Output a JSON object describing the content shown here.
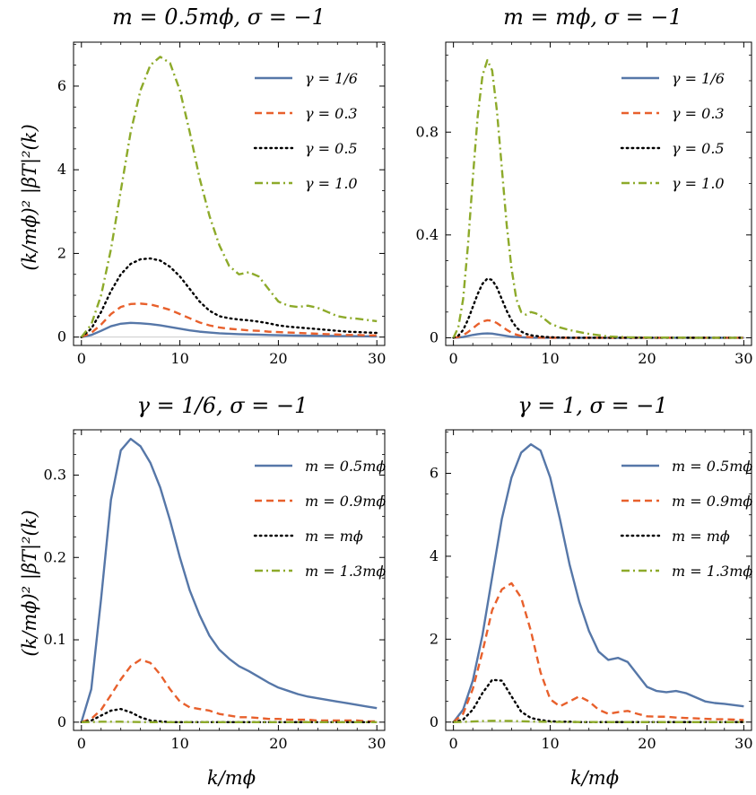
{
  "colors": {
    "blue": "#5677A8",
    "orange": "#E8602C",
    "black": "#000000",
    "green": "#8DAA2A"
  },
  "shared": {
    "ylabel": "(k/mϕ)² |βT|²(k)",
    "xlabel": "k/mϕ"
  },
  "chart_data": [
    {
      "type": "line",
      "title": "m = 0.5mϕ, σ = −1",
      "xlabel": "",
      "ylabel": "(k/mϕ)² |βT|²(k)",
      "xlim": [
        -0.8,
        30.8
      ],
      "ylim": [
        -0.2,
        7.05
      ],
      "xticks": [
        0,
        10,
        20,
        30
      ],
      "yticks": [
        0,
        2,
        4,
        6
      ],
      "legend_position": "top-right",
      "x": [
        0,
        1,
        2,
        3,
        4,
        5,
        6,
        7,
        8,
        9,
        10,
        11,
        12,
        13,
        14,
        15,
        16,
        17,
        18,
        19,
        20,
        21,
        22,
        23,
        24,
        25,
        26,
        27,
        28,
        29,
        30
      ],
      "series": [
        {
          "name": "γ = 1/6",
          "color": "blue",
          "style": "solid",
          "values": [
            0,
            0.05,
            0.15,
            0.26,
            0.32,
            0.34,
            0.33,
            0.31,
            0.28,
            0.24,
            0.2,
            0.16,
            0.13,
            0.11,
            0.09,
            0.08,
            0.07,
            0.065,
            0.058,
            0.05,
            0.045,
            0.04,
            0.036,
            0.033,
            0.03,
            0.028,
            0.025,
            0.023,
            0.021,
            0.019,
            0.017
          ]
        },
        {
          "name": "γ = 0.3",
          "color": "orange",
          "style": "dashed",
          "values": [
            0,
            0.1,
            0.3,
            0.55,
            0.72,
            0.79,
            0.8,
            0.78,
            0.72,
            0.65,
            0.55,
            0.45,
            0.35,
            0.28,
            0.23,
            0.2,
            0.18,
            0.16,
            0.15,
            0.13,
            0.12,
            0.11,
            0.1,
            0.09,
            0.08,
            0.07,
            0.06,
            0.05,
            0.05,
            0.04,
            0.04
          ]
        },
        {
          "name": "γ = 0.5",
          "color": "black",
          "style": "dotted",
          "values": [
            0,
            0.2,
            0.6,
            1.1,
            1.5,
            1.75,
            1.86,
            1.88,
            1.83,
            1.68,
            1.45,
            1.15,
            0.85,
            0.63,
            0.5,
            0.45,
            0.42,
            0.4,
            0.37,
            0.33,
            0.28,
            0.25,
            0.23,
            0.21,
            0.19,
            0.17,
            0.15,
            0.13,
            0.12,
            0.11,
            0.1
          ]
        },
        {
          "name": "γ = 1.0",
          "color": "green",
          "style": "dashdot",
          "values": [
            0,
            0.3,
            1.0,
            2.1,
            3.5,
            4.9,
            5.9,
            6.5,
            6.7,
            6.55,
            5.9,
            4.9,
            3.8,
            2.9,
            2.2,
            1.7,
            1.5,
            1.55,
            1.45,
            1.15,
            0.85,
            0.75,
            0.72,
            0.75,
            0.7,
            0.6,
            0.5,
            0.46,
            0.44,
            0.41,
            0.38
          ]
        }
      ]
    },
    {
      "type": "line",
      "title": "m = mϕ, σ = −1",
      "xlabel": "",
      "ylabel": "",
      "xlim": [
        -0.8,
        30.8
      ],
      "ylim": [
        -0.03,
        1.15
      ],
      "xticks": [
        0,
        10,
        20,
        30
      ],
      "yticks": [
        0,
        0.4,
        0.8
      ],
      "legend_position": "top-right",
      "x": [
        0,
        0.5,
        1,
        1.5,
        2,
        2.5,
        3,
        3.5,
        4,
        4.5,
        5,
        5.5,
        6,
        6.5,
        7,
        7.5,
        8,
        8.5,
        9,
        9.5,
        10,
        11,
        12,
        13,
        14,
        15,
        16,
        18,
        20,
        25,
        30
      ],
      "series": [
        {
          "name": "γ = 1/6",
          "color": "blue",
          "style": "solid",
          "values": [
            0,
            0.001,
            0.003,
            0.007,
            0.011,
            0.014,
            0.016,
            0.017,
            0.016,
            0.013,
            0.01,
            0.007,
            0.004,
            0.003,
            0.002,
            0.001,
            0.001,
            0,
            0,
            0,
            0,
            0,
            0,
            0,
            0,
            0,
            0,
            0,
            0,
            0,
            0
          ]
        },
        {
          "name": "γ = 0.3",
          "color": "orange",
          "style": "dashed",
          "values": [
            0,
            0.003,
            0.01,
            0.022,
            0.037,
            0.052,
            0.063,
            0.068,
            0.066,
            0.057,
            0.044,
            0.031,
            0.02,
            0.012,
            0.007,
            0.004,
            0.002,
            0.001,
            0.001,
            0,
            0,
            0,
            0,
            0,
            0,
            0,
            0,
            0,
            0,
            0,
            0
          ]
        },
        {
          "name": "γ = 0.5",
          "color": "black",
          "style": "dotted",
          "values": [
            0,
            0.008,
            0.03,
            0.07,
            0.12,
            0.17,
            0.21,
            0.23,
            0.225,
            0.195,
            0.15,
            0.105,
            0.068,
            0.04,
            0.024,
            0.015,
            0.01,
            0.007,
            0.005,
            0.003,
            0.002,
            0.001,
            0,
            0,
            0,
            0,
            0,
            0,
            0,
            0,
            0
          ]
        },
        {
          "name": "γ = 1.0",
          "color": "green",
          "style": "dashdot",
          "values": [
            0,
            0.04,
            0.15,
            0.36,
            0.62,
            0.86,
            1.02,
            1.08,
            1.04,
            0.88,
            0.66,
            0.44,
            0.27,
            0.15,
            0.1,
            0.09,
            0.1,
            0.095,
            0.085,
            0.07,
            0.055,
            0.04,
            0.03,
            0.022,
            0.015,
            0.01,
            0.005,
            0.002,
            0.001,
            0,
            0
          ]
        }
      ]
    },
    {
      "type": "line",
      "title": "γ = 1/6, σ = −1",
      "xlabel": "k/mϕ",
      "ylabel": "(k/mϕ)² |βT|²(k)",
      "xlim": [
        -0.8,
        30.8
      ],
      "ylim": [
        -0.01,
        0.355
      ],
      "xticks": [
        0,
        10,
        20,
        30
      ],
      "yticks": [
        0,
        0.1,
        0.2,
        0.3
      ],
      "legend_position": "top-right",
      "x": [
        0,
        1,
        2,
        3,
        4,
        5,
        6,
        7,
        8,
        9,
        10,
        11,
        12,
        13,
        14,
        15,
        16,
        17,
        18,
        19,
        20,
        21,
        22,
        23,
        24,
        25,
        26,
        27,
        28,
        29,
        30
      ],
      "series": [
        {
          "name": "m = 0.5mϕ",
          "color": "blue",
          "style": "solid",
          "values": [
            0,
            0.04,
            0.15,
            0.27,
            0.33,
            0.344,
            0.335,
            0.315,
            0.285,
            0.245,
            0.2,
            0.16,
            0.13,
            0.105,
            0.088,
            0.077,
            0.068,
            0.062,
            0.055,
            0.048,
            0.042,
            0.038,
            0.034,
            0.031,
            0.029,
            0.027,
            0.025,
            0.023,
            0.021,
            0.019,
            0.017
          ]
        },
        {
          "name": "m = 0.9mϕ",
          "color": "orange",
          "style": "dashed",
          "values": [
            0,
            0.004,
            0.015,
            0.033,
            0.052,
            0.068,
            0.076,
            0.072,
            0.058,
            0.04,
            0.025,
            0.018,
            0.016,
            0.014,
            0.01,
            0.008,
            0.006,
            0.006,
            0.005,
            0.004,
            0.004,
            0.003,
            0.003,
            0.003,
            0.002,
            0.002,
            0.002,
            0.002,
            0.002,
            0.001,
            0.001
          ]
        },
        {
          "name": "m = mϕ",
          "color": "black",
          "style": "dotted",
          "values": [
            0,
            0.002,
            0.008,
            0.014,
            0.016,
            0.012,
            0.006,
            0.002,
            0.001,
            0,
            0,
            0,
            0,
            0,
            0,
            0,
            0,
            0,
            0,
            0,
            0,
            0,
            0,
            0,
            0,
            0,
            0,
            0,
            0,
            0,
            0
          ]
        },
        {
          "name": "m = 1.3mϕ",
          "color": "green",
          "style": "dashdot",
          "values": [
            0,
            0.0002,
            0.0005,
            0.0006,
            0.0005,
            0.0003,
            0.0001,
            0,
            0,
            0,
            0,
            0,
            0,
            0,
            0,
            0,
            0,
            0,
            0,
            0,
            0,
            0,
            0,
            0,
            0,
            0,
            0,
            0,
            0,
            0,
            0
          ]
        }
      ]
    },
    {
      "type": "line",
      "title": "γ = 1, σ = −1",
      "xlabel": "k/mϕ",
      "ylabel": "",
      "xlim": [
        -0.8,
        30.8
      ],
      "ylim": [
        -0.2,
        7.05
      ],
      "xticks": [
        0,
        10,
        20,
        30
      ],
      "yticks": [
        0,
        2,
        4,
        6
      ],
      "legend_position": "top-right",
      "x": [
        0,
        1,
        2,
        3,
        4,
        5,
        6,
        7,
        8,
        9,
        10,
        11,
        12,
        13,
        14,
        15,
        16,
        17,
        18,
        19,
        20,
        21,
        22,
        23,
        24,
        25,
        26,
        27,
        28,
        29,
        30
      ],
      "series": [
        {
          "name": "m = 0.5mϕ",
          "color": "blue",
          "style": "solid",
          "values": [
            0,
            0.3,
            1.0,
            2.1,
            3.5,
            4.9,
            5.9,
            6.5,
            6.7,
            6.55,
            5.9,
            4.9,
            3.8,
            2.9,
            2.2,
            1.7,
            1.5,
            1.55,
            1.45,
            1.15,
            0.85,
            0.75,
            0.72,
            0.75,
            0.7,
            0.6,
            0.5,
            0.46,
            0.44,
            0.41,
            0.38
          ]
        },
        {
          "name": "m = 0.9mϕ",
          "color": "orange",
          "style": "dashed",
          "values": [
            0,
            0.2,
            0.8,
            1.7,
            2.7,
            3.2,
            3.35,
            3.0,
            2.2,
            1.2,
            0.55,
            0.38,
            0.5,
            0.62,
            0.5,
            0.3,
            0.2,
            0.24,
            0.27,
            0.2,
            0.14,
            0.13,
            0.13,
            0.11,
            0.1,
            0.09,
            0.08,
            0.07,
            0.07,
            0.06,
            0.05
          ]
        },
        {
          "name": "m = mϕ",
          "color": "black",
          "style": "dotted",
          "values": [
            0,
            0.06,
            0.3,
            0.7,
            1.02,
            1.0,
            0.62,
            0.25,
            0.1,
            0.05,
            0.02,
            0.01,
            0.01,
            0,
            0,
            0,
            0,
            0,
            0,
            0,
            0,
            0,
            0,
            0,
            0,
            0,
            0,
            0,
            0,
            0,
            0
          ]
        },
        {
          "name": "m = 1.3mϕ",
          "color": "green",
          "style": "dashdot",
          "values": [
            0,
            0.005,
            0.015,
            0.025,
            0.03,
            0.03,
            0.027,
            0.02,
            0.014,
            0.01,
            0.006,
            0.004,
            0.003,
            0.002,
            0.002,
            0.001,
            0.001,
            0,
            0,
            0,
            0,
            0,
            0,
            0,
            0,
            0,
            0,
            0,
            0,
            0,
            0
          ]
        }
      ]
    }
  ]
}
